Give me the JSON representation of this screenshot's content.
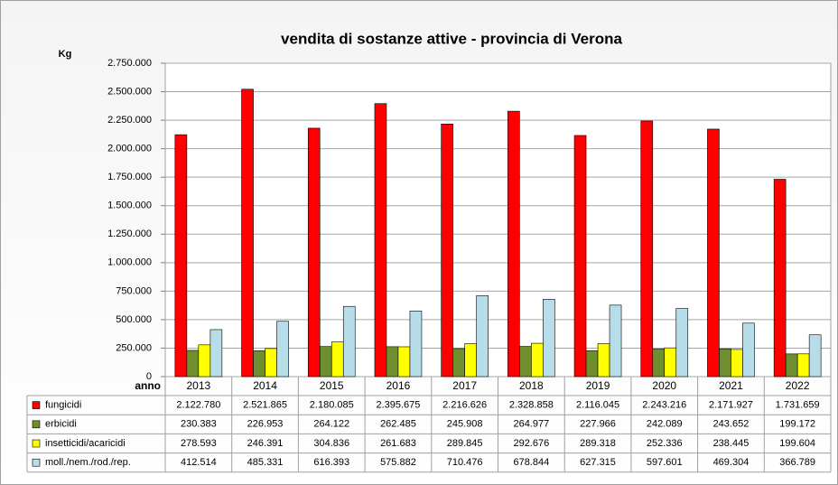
{
  "chart_data": {
    "type": "bar",
    "title": "vendita di sostanze attive - provincia di Verona",
    "y_label": "Kg",
    "x_label": "anno",
    "categories": [
      "2013",
      "2014",
      "2015",
      "2016",
      "2017",
      "2018",
      "2019",
      "2020",
      "2021",
      "2022"
    ],
    "series": [
      {
        "name": "fungicidi",
        "color": "#ff0000",
        "values": [
          2122780,
          2521865,
          2180085,
          2395675,
          2216626,
          2328858,
          2116045,
          2243216,
          2171927,
          1731659
        ],
        "value_labels": [
          "2.122.780",
          "2.521.865",
          "2.180.085",
          "2.395.675",
          "2.216.626",
          "2.328.858",
          "2.116.045",
          "2.243.216",
          "2.171.927",
          "1.731.659"
        ]
      },
      {
        "name": "erbicidi",
        "color": "#6f8f2f",
        "values": [
          230383,
          226953,
          264122,
          262485,
          245908,
          264977,
          227966,
          242089,
          243652,
          199172
        ],
        "value_labels": [
          "230.383",
          "226.953",
          "264.122",
          "262.485",
          "245.908",
          "264.977",
          "227.966",
          "242.089",
          "243.652",
          "199.172"
        ]
      },
      {
        "name": "insetticidi/acaricidi",
        "color": "#ffff00",
        "values": [
          278593,
          246391,
          304836,
          261683,
          289845,
          292676,
          289318,
          252336,
          238445,
          199604
        ],
        "value_labels": [
          "278.593",
          "246.391",
          "304.836",
          "261.683",
          "289.845",
          "292.676",
          "289.318",
          "252.336",
          "238.445",
          "199.604"
        ]
      },
      {
        "name": "moll./nem./rod./rep.",
        "color": "#b7dde8",
        "values": [
          412514,
          485331,
          616393,
          575882,
          710476,
          678844,
          627315,
          597601,
          469304,
          366789
        ],
        "value_labels": [
          "412.514",
          "485.331",
          "616.393",
          "575.882",
          "710.476",
          "678.844",
          "627.315",
          "597.601",
          "469.304",
          "366.789"
        ]
      }
    ],
    "ylim": [
      0,
      2750000
    ],
    "yticks": [
      0,
      {
        "value": 250000,
        "label": "250.000"
      },
      {
        "value": 500000,
        "label": "500.000"
      },
      {
        "value": 750000,
        "label": "750.000"
      },
      {
        "value": 1000000,
        "label": "1.000.000"
      },
      {
        "value": 1250000,
        "label": "1.250.000"
      },
      {
        "value": 1500000,
        "label": "1.500.000"
      },
      {
        "value": 1750000,
        "label": "1.750.000"
      },
      {
        "value": 2000000,
        "label": "2.000.000"
      },
      {
        "value": 2250000,
        "label": "2.250.000"
      },
      {
        "value": 2500000,
        "label": "2.500.000"
      },
      {
        "value": 2750000,
        "label": "2.750.000"
      }
    ],
    "grid": true
  }
}
